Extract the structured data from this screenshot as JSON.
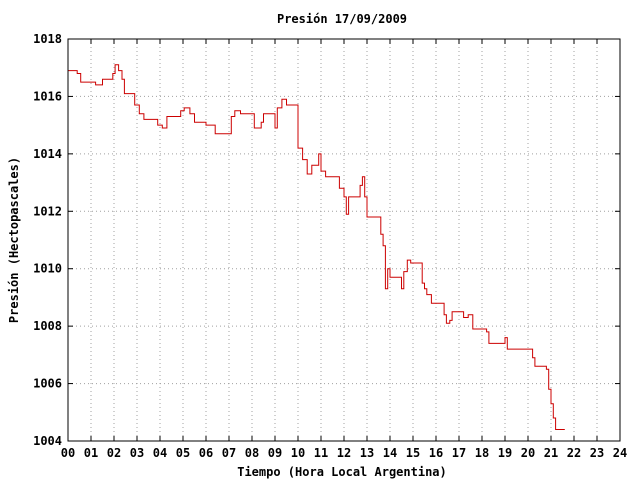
{
  "chart_data": {
    "type": "line",
    "title": "Presión 17/09/2009",
    "xlabel": "Tiempo (Hora Local Argentina)",
    "ylabel": "Presión (Hectopascales)",
    "xlim": [
      0,
      24
    ],
    "ylim": [
      1004,
      1018
    ],
    "x_ticks": [
      "00",
      "01",
      "02",
      "03",
      "04",
      "05",
      "06",
      "07",
      "08",
      "09",
      "10",
      "11",
      "12",
      "13",
      "14",
      "15",
      "16",
      "17",
      "18",
      "19",
      "20",
      "21",
      "22",
      "23",
      "24"
    ],
    "y_ticks": [
      "1004",
      "1006",
      "1008",
      "1010",
      "1012",
      "1014",
      "1016",
      "1018"
    ],
    "grid": true,
    "line_style": "step",
    "colors": {
      "series": "#cc0000",
      "grid": "#a0a0a0",
      "frame": "#000000"
    },
    "series": [
      {
        "points": [
          [
            0.0,
            1016.9
          ],
          [
            0.4,
            1016.8
          ],
          [
            0.55,
            1016.5
          ],
          [
            1.2,
            1016.4
          ],
          [
            1.5,
            1016.6
          ],
          [
            1.95,
            1016.8
          ],
          [
            2.05,
            1017.1
          ],
          [
            2.2,
            1016.9
          ],
          [
            2.35,
            1016.6
          ],
          [
            2.45,
            1016.1
          ],
          [
            2.9,
            1015.7
          ],
          [
            3.1,
            1015.4
          ],
          [
            3.3,
            1015.2
          ],
          [
            3.9,
            1015.0
          ],
          [
            4.1,
            1014.9
          ],
          [
            4.3,
            1015.3
          ],
          [
            4.9,
            1015.5
          ],
          [
            5.05,
            1015.6
          ],
          [
            5.3,
            1015.4
          ],
          [
            5.5,
            1015.1
          ],
          [
            6.0,
            1015.0
          ],
          [
            6.4,
            1014.7
          ],
          [
            7.1,
            1015.3
          ],
          [
            7.25,
            1015.5
          ],
          [
            7.5,
            1015.4
          ],
          [
            8.1,
            1014.9
          ],
          [
            8.4,
            1015.1
          ],
          [
            8.5,
            1015.4
          ],
          [
            9.0,
            1014.9
          ],
          [
            9.1,
            1015.6
          ],
          [
            9.3,
            1015.9
          ],
          [
            9.5,
            1015.7
          ],
          [
            10.0,
            1014.2
          ],
          [
            10.2,
            1013.8
          ],
          [
            10.4,
            1013.3
          ],
          [
            10.6,
            1013.6
          ],
          [
            10.9,
            1014.0
          ],
          [
            11.0,
            1013.4
          ],
          [
            11.2,
            1013.2
          ],
          [
            11.8,
            1012.8
          ],
          [
            12.0,
            1012.5
          ],
          [
            12.1,
            1011.9
          ],
          [
            12.2,
            1012.5
          ],
          [
            12.7,
            1012.9
          ],
          [
            12.8,
            1013.2
          ],
          [
            12.9,
            1012.5
          ],
          [
            13.0,
            1011.8
          ],
          [
            13.2,
            1011.8
          ],
          [
            13.6,
            1011.2
          ],
          [
            13.7,
            1010.8
          ],
          [
            13.8,
            1009.3
          ],
          [
            13.9,
            1010.0
          ],
          [
            14.0,
            1009.7
          ],
          [
            14.3,
            1009.7
          ],
          [
            14.5,
            1009.3
          ],
          [
            14.6,
            1009.9
          ],
          [
            14.75,
            1010.3
          ],
          [
            14.9,
            1010.2
          ],
          [
            15.1,
            1010.2
          ],
          [
            15.4,
            1009.5
          ],
          [
            15.5,
            1009.3
          ],
          [
            15.6,
            1009.1
          ],
          [
            15.8,
            1008.8
          ],
          [
            16.2,
            1008.8
          ],
          [
            16.35,
            1008.4
          ],
          [
            16.45,
            1008.1
          ],
          [
            16.6,
            1008.2
          ],
          [
            16.7,
            1008.5
          ],
          [
            17.0,
            1008.5
          ],
          [
            17.2,
            1008.3
          ],
          [
            17.4,
            1008.4
          ],
          [
            17.6,
            1007.9
          ],
          [
            18.2,
            1007.8
          ],
          [
            18.3,
            1007.4
          ],
          [
            18.9,
            1007.4
          ],
          [
            19.0,
            1007.6
          ],
          [
            19.1,
            1007.2
          ],
          [
            20.0,
            1007.2
          ],
          [
            20.2,
            1006.9
          ],
          [
            20.3,
            1006.6
          ],
          [
            20.8,
            1006.5
          ],
          [
            20.9,
            1005.8
          ],
          [
            21.0,
            1005.3
          ],
          [
            21.1,
            1004.8
          ],
          [
            21.2,
            1004.4
          ],
          [
            21.6,
            1004.4
          ]
        ]
      }
    ]
  }
}
